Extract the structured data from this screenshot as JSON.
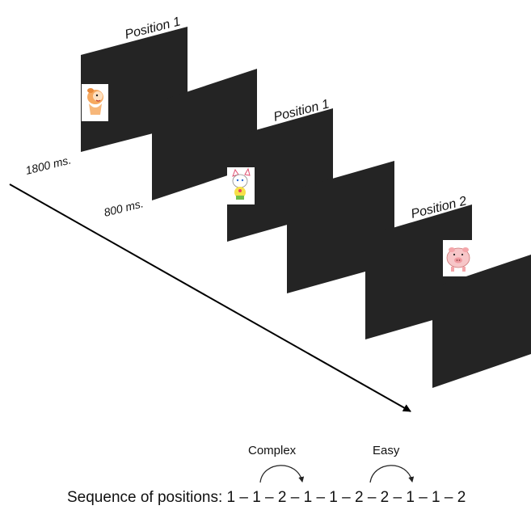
{
  "diagram": {
    "frame_color": "#242424",
    "slides": [
      {
        "kind": "stimulus",
        "position_label": "Position 1",
        "image": "baby-chick-character"
      },
      {
        "kind": "blank"
      },
      {
        "kind": "stimulus",
        "position_label": "Position 1",
        "image": "white-cat-character"
      },
      {
        "kind": "blank"
      },
      {
        "kind": "stimulus",
        "position_label": "Position 2",
        "image": "pink-pig-character"
      },
      {
        "kind": "blank"
      }
    ],
    "durations": {
      "stimulus": "1800 ms.",
      "blank": "800 ms."
    }
  },
  "sequence": {
    "complex_label": "Complex",
    "easy_label": "Easy",
    "text": "Sequence of positions: 1 – 1 – 2 – 1 – 1 – 2 – 2 – 1 – 1 – 2"
  }
}
